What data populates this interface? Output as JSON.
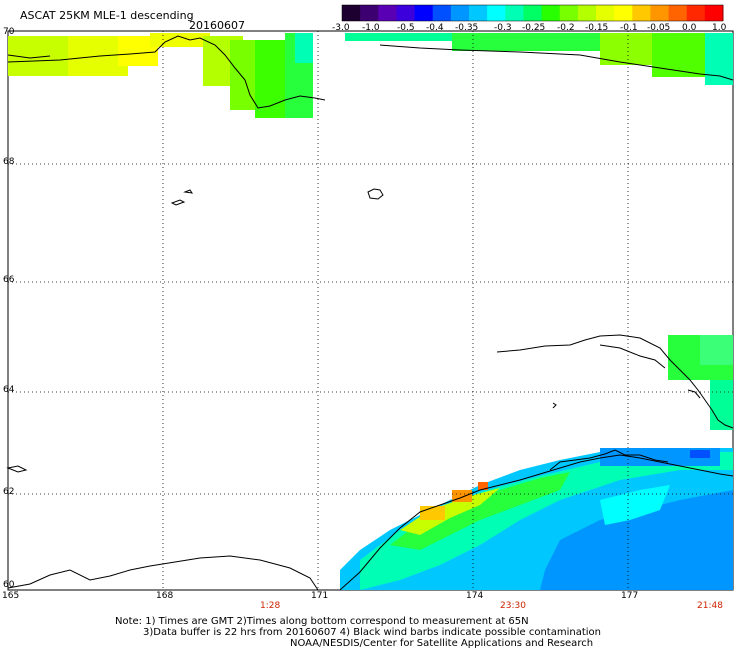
{
  "header": {
    "title": "ASCAT 25KM MLE-1 descending",
    "date": "20160607"
  },
  "colorbar": {
    "labels": [
      "-3.0",
      "-1.0",
      "-0.5",
      "-0.4",
      "-0.35",
      "-0.3",
      "-0.25",
      "-0.2",
      "-0.15",
      "-0.1",
      "-0.05",
      "0.0",
      "1.0"
    ],
    "colors": [
      "#1e0030",
      "#3c0070",
      "#5a00b4",
      "#3c00dc",
      "#0000ff",
      "#0050ff",
      "#0096ff",
      "#00c8ff",
      "#00ffff",
      "#00ffb4",
      "#00ff64",
      "#28ff00",
      "#78ff00",
      "#b4ff00",
      "#e6ff00",
      "#ffff00",
      "#ffc800",
      "#ff9600",
      "#ff6400",
      "#ff2800",
      "#ff0000"
    ]
  },
  "axes": {
    "lon_labels": [
      "165",
      "168",
      "171",
      "174",
      "177"
    ],
    "lat_labels": [
      "70",
      "68",
      "66",
      "64",
      "62",
      "60"
    ]
  },
  "times": [
    "1:28",
    "23:30",
    "21:48"
  ],
  "notes": [
    "Note: 1) Times are GMT 2)Times along bottom correspond to measurement at 65N",
    "3)Data buffer is 22 hrs from 20160607 4) Black wind barbs indicate possible contamination",
    "NOAA/NESDIS/Center for Satellite Applications and Research"
  ],
  "style": {
    "time_color": "#cc2200"
  }
}
